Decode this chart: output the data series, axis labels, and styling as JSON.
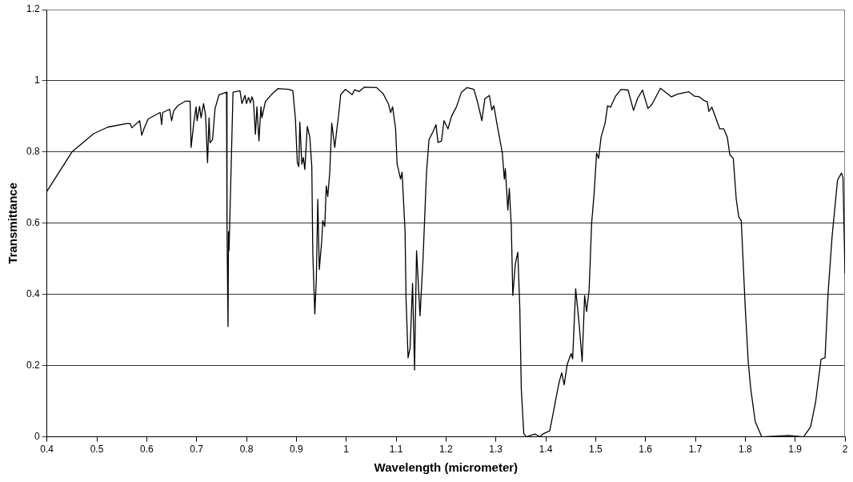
{
  "chart_data": {
    "type": "line",
    "xlabel": "Wavelength (micrometer)",
    "ylabel": "Transmittance",
    "xlim": [
      0.4,
      2
    ],
    "xticks": [
      0.4,
      0.5,
      0.6,
      0.7,
      0.8,
      0.9,
      1,
      1.1,
      1.2,
      1.3,
      1.4,
      1.5,
      1.6,
      1.7,
      1.8,
      1.9,
      2
    ],
    "ylim": [
      0,
      1.2
    ],
    "yticks": [
      0,
      0.2,
      0.4,
      0.6,
      0.8,
      1,
      1.2
    ],
    "grid": "y",
    "legend": false,
    "marker": "none",
    "line_style": "solid",
    "series": [
      {
        "color": "#000000",
        "x": [
          0.4,
          0.45,
          0.494,
          0.522,
          0.559,
          0.567,
          0.57,
          0.586,
          0.59,
          0.595,
          0.603,
          0.627,
          0.63,
          0.632,
          0.646,
          0.65,
          0.654,
          0.662,
          0.678,
          0.687,
          0.689,
          0.694,
          0.699,
          0.701,
          0.706,
          0.709,
          0.714,
          0.718,
          0.722,
          0.725,
          0.727,
          0.732,
          0.737,
          0.745,
          0.76,
          0.761,
          0.763,
          0.764,
          0.765,
          0.77,
          0.773,
          0.787,
          0.791,
          0.797,
          0.8,
          0.804,
          0.808,
          0.811,
          0.814,
          0.818,
          0.821,
          0.825,
          0.829,
          0.831,
          0.838,
          0.852,
          0.863,
          0.885,
          0.893,
          0.898,
          0.902,
          0.905,
          0.907,
          0.911,
          0.914,
          0.917,
          0.922,
          0.927,
          0.931,
          0.933,
          0.937,
          0.94,
          0.943,
          0.946,
          0.951,
          0.953,
          0.957,
          0.96,
          0.963,
          0.967,
          0.971,
          0.977,
          0.981,
          0.985,
          0.989,
          0.998,
          1.012,
          1.017,
          1.026,
          1.036,
          1.061,
          1.074,
          1.085,
          1.089,
          1.093,
          1.099,
          1.102,
          1.109,
          1.112,
          1.118,
          1.12,
          1.124,
          1.128,
          1.133,
          1.137,
          1.141,
          1.148,
          1.154,
          1.161,
          1.166,
          1.174,
          1.18,
          1.184,
          1.191,
          1.196,
          1.204,
          1.211,
          1.221,
          1.231,
          1.242,
          1.256,
          1.263,
          1.272,
          1.278,
          1.287,
          1.292,
          1.296,
          1.302,
          1.313,
          1.317,
          1.319,
          1.324,
          1.327,
          1.331,
          1.334,
          1.339,
          1.344,
          1.348,
          1.351,
          1.356,
          1.361,
          1.378,
          1.389,
          1.394,
          1.408,
          1.416,
          1.421,
          1.427,
          1.432,
          1.437,
          1.443,
          1.451,
          1.454,
          1.46,
          1.467,
          1.473,
          1.478,
          1.482,
          1.487,
          1.492,
          1.497,
          1.502,
          1.506,
          1.511,
          1.519,
          1.524,
          1.53,
          1.54,
          1.551,
          1.565,
          1.576,
          1.584,
          1.594,
          1.605,
          1.613,
          1.63,
          1.652,
          1.665,
          1.687,
          1.698,
          1.708,
          1.717,
          1.724,
          1.727,
          1.733,
          1.744,
          1.749,
          1.757,
          1.764,
          1.769,
          1.776,
          1.782,
          1.787,
          1.792,
          1.8,
          1.806,
          1.811,
          1.82,
          1.833,
          1.887,
          1.917,
          1.931,
          1.941,
          1.952,
          1.96,
          1.966,
          1.974,
          1.985,
          1.993,
          1.996,
          2
        ],
        "values": [
          0.69,
          0.8,
          0.852,
          0.87,
          0.88,
          0.88,
          0.868,
          0.888,
          0.847,
          0.867,
          0.893,
          0.911,
          0.877,
          0.911,
          0.92,
          0.888,
          0.915,
          0.93,
          0.943,
          0.943,
          0.813,
          0.877,
          0.927,
          0.888,
          0.928,
          0.896,
          0.936,
          0.904,
          0.77,
          0.896,
          0.826,
          0.835,
          0.922,
          0.961,
          0.968,
          0.591,
          0.31,
          0.576,
          0.523,
          0.797,
          0.968,
          0.972,
          0.936,
          0.959,
          0.936,
          0.953,
          0.938,
          0.955,
          0.942,
          0.85,
          0.927,
          0.831,
          0.927,
          0.896,
          0.942,
          0.964,
          0.978,
          0.976,
          0.972,
          0.896,
          0.77,
          0.759,
          0.884,
          0.766,
          0.785,
          0.751,
          0.872,
          0.842,
          0.759,
          0.516,
          0.345,
          0.439,
          0.667,
          0.47,
          0.553,
          0.607,
          0.591,
          0.705,
          0.675,
          0.743,
          0.881,
          0.813,
          0.861,
          0.907,
          0.961,
          0.976,
          0.961,
          0.975,
          0.97,
          0.982,
          0.981,
          0.964,
          0.934,
          0.911,
          0.927,
          0.865,
          0.767,
          0.724,
          0.743,
          0.576,
          0.386,
          0.222,
          0.249,
          0.431,
          0.188,
          0.523,
          0.34,
          0.5,
          0.743,
          0.835,
          0.857,
          0.877,
          0.827,
          0.831,
          0.888,
          0.865,
          0.9,
          0.927,
          0.968,
          0.981,
          0.976,
          0.942,
          0.888,
          0.95,
          0.959,
          0.918,
          0.93,
          0.881,
          0.797,
          0.724,
          0.753,
          0.637,
          0.698,
          0.591,
          0.397,
          0.485,
          0.519,
          0.363,
          0.135,
          0.009,
          0,
          0.008,
          0,
          0.008,
          0.017,
          0.074,
          0.112,
          0.154,
          0.18,
          0.146,
          0.203,
          0.234,
          0.219,
          0.416,
          0.317,
          0.211,
          0.397,
          0.352,
          0.413,
          0.599,
          0.683,
          0.797,
          0.782,
          0.842,
          0.881,
          0.93,
          0.926,
          0.957,
          0.976,
          0.974,
          0.917,
          0.95,
          0.974,
          0.922,
          0.934,
          0.979,
          0.955,
          0.963,
          0.969,
          0.957,
          0.955,
          0.945,
          0.941,
          0.914,
          0.926,
          0.884,
          0.865,
          0.865,
          0.842,
          0.793,
          0.782,
          0.667,
          0.618,
          0.607,
          0.363,
          0.211,
          0.135,
          0.043,
          0,
          0.004,
          0,
          0.028,
          0.097,
          0.218,
          0.222,
          0.401,
          0.561,
          0.721,
          0.741,
          0.728,
          0.459
        ]
      }
    ]
  }
}
